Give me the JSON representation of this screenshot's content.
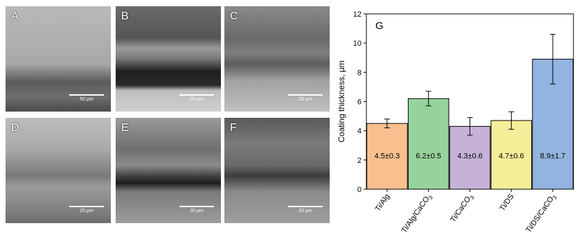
{
  "panels": [
    {
      "label": "A",
      "scale": "50 μm"
    },
    {
      "label": "B",
      "scale": "20 μm"
    },
    {
      "label": "C",
      "scale": "20 μm"
    },
    {
      "label": "D",
      "scale": "20 μm"
    },
    {
      "label": "E",
      "scale": "20 μm"
    },
    {
      "label": "F",
      "scale": "20 μm"
    }
  ],
  "chart_data": {
    "type": "bar",
    "panel_label": "G",
    "categories": [
      "Ti/Alg",
      "Ti/Alg/CaCO3",
      "Ti/CaCO3",
      "Ti/DS",
      "Ti/DS/CaCO3"
    ],
    "values": [
      4.5,
      6.2,
      4.3,
      4.7,
      8.9
    ],
    "errors": [
      0.3,
      0.5,
      0.6,
      0.6,
      1.7
    ],
    "bar_labels": [
      "4.5±0.3",
      "6.2±0.5",
      "4.3±0.6",
      "4.7±0.6",
      "8.9±1.7"
    ],
    "colors": [
      "#f8c08e",
      "#96d39c",
      "#c6b2d8",
      "#f6ee98",
      "#93b3e0"
    ],
    "ylabel": "Coating thickness, μm",
    "xlabel": "",
    "ylim": [
      0,
      12
    ],
    "yticks": [
      0,
      2,
      4,
      6,
      8,
      10,
      12
    ],
    "grid": false
  }
}
